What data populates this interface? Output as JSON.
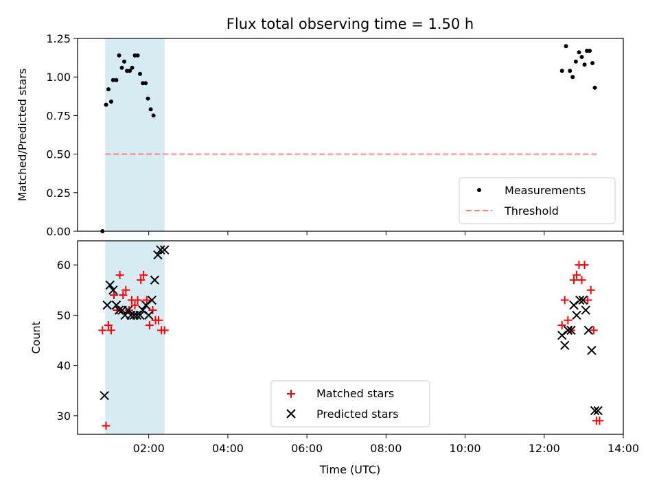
{
  "chart_data": [
    {
      "type": "scatter",
      "title": "Flux total observing time = 1.50 h",
      "xlabel": "",
      "ylabel": "Matched/Predicted stars",
      "xlim": [
        0.2,
        14.0
      ],
      "ylim": [
        0.0,
        1.25
      ],
      "yticks": [
        0.0,
        0.25,
        0.5,
        0.75,
        1.0,
        1.25
      ],
      "ytick_labels": [
        "0.00",
        "0.25",
        "0.50",
        "0.75",
        "1.00",
        "1.25"
      ],
      "xticks": [
        2,
        4,
        6,
        8,
        10,
        12,
        14
      ],
      "xtick_labels": [
        "",
        "",
        "",
        "",
        "",
        "",
        ""
      ],
      "shaded_region": {
        "x": [
          0.9,
          2.4
        ],
        "color": "#add8e6"
      },
      "threshold": {
        "name": "Threshold",
        "y": 0.5,
        "x": [
          0.9,
          13.4
        ],
        "color": "#ff8080",
        "style": "dashed"
      },
      "legend_position": "lower-right",
      "series": [
        {
          "name": "Measurements",
          "color": "#000000",
          "marker": "dot",
          "x": [
            0.83,
            0.92,
            0.98,
            1.05,
            1.1,
            1.18,
            1.25,
            1.32,
            1.38,
            1.45,
            1.52,
            1.58,
            1.65,
            1.72,
            1.78,
            1.85,
            1.92,
            1.98,
            2.05,
            2.12,
            2.18,
            2.25,
            2.32,
            2.4,
            12.45,
            12.55,
            12.65,
            12.72,
            12.8,
            12.88,
            12.95,
            13.02,
            13.08,
            13.15,
            13.22,
            13.28,
            13.35
          ],
          "y": [
            0.0,
            0.82,
            0.92,
            0.84,
            0.98,
            0.98,
            1.14,
            1.06,
            1.1,
            1.04,
            1.04,
            1.06,
            1.14,
            1.14,
            1.02,
            0.96,
            0.96,
            0.86,
            0.79,
            0.75,
            null,
            null,
            null,
            null,
            1.04,
            1.2,
            1.04,
            1.0,
            1.1,
            1.16,
            1.13,
            1.08,
            1.17,
            1.17,
            1.09,
            0.93,
            null
          ]
        }
      ]
    },
    {
      "type": "scatter",
      "title": "",
      "xlabel": "Time (UTC)",
      "ylabel": "Count",
      "xlim": [
        0.2,
        14.0
      ],
      "ylim": [
        26.3,
        64.8
      ],
      "yticks": [
        30,
        40,
        50,
        60
      ],
      "ytick_labels": [
        "30",
        "40",
        "50",
        "60"
      ],
      "xticks": [
        2,
        4,
        6,
        8,
        10,
        12,
        14
      ],
      "xtick_labels": [
        "02:00",
        "04:00",
        "06:00",
        "08:00",
        "10:00",
        "12:00",
        "14:00"
      ],
      "shaded_region": {
        "x": [
          0.9,
          2.4
        ],
        "color": "#add8e6"
      },
      "legend_position": "lower-center",
      "series": [
        {
          "name": "Matched stars",
          "color": "#ff0000",
          "marker": "plus",
          "x": [
            0.83,
            0.92,
            0.98,
            1.05,
            1.12,
            1.2,
            1.27,
            1.35,
            1.42,
            1.5,
            1.57,
            1.65,
            1.72,
            1.8,
            1.87,
            1.95,
            2.02,
            2.1,
            2.17,
            2.25,
            2.32,
            2.4,
            12.45,
            12.52,
            12.6,
            12.68,
            12.75,
            12.82,
            12.88,
            12.95,
            13.02,
            13.1,
            13.18,
            13.25,
            13.32,
            13.4
          ],
          "y": [
            47,
            28,
            48,
            47,
            54,
            51,
            58,
            54,
            55,
            51,
            53,
            52,
            53,
            57,
            58,
            53,
            48,
            51,
            49,
            49,
            47,
            47,
            48,
            53,
            49,
            47,
            57,
            58,
            60,
            57,
            60,
            53,
            55,
            47,
            29,
            29
          ]
        },
        {
          "name": "Predicted stars",
          "color": "#000000",
          "marker": "x",
          "x": [
            0.88,
            0.95,
            1.02,
            1.1,
            1.18,
            1.25,
            1.33,
            1.4,
            1.48,
            1.55,
            1.63,
            1.7,
            1.78,
            1.85,
            1.93,
            2.0,
            2.08,
            2.15,
            2.23,
            2.3,
            2.4,
            12.45,
            12.52,
            12.6,
            12.68,
            12.75,
            12.82,
            12.9,
            12.98,
            13.05,
            13.12,
            13.2,
            13.28,
            13.36
          ],
          "y": [
            34,
            52,
            56,
            55,
            52,
            51,
            51,
            50,
            51,
            50,
            50,
            50,
            50,
            51,
            52,
            50,
            53,
            57,
            62,
            63,
            63,
            46,
            44,
            47,
            47,
            52,
            50,
            53,
            53,
            51,
            47,
            43,
            31,
            31
          ]
        }
      ]
    }
  ]
}
